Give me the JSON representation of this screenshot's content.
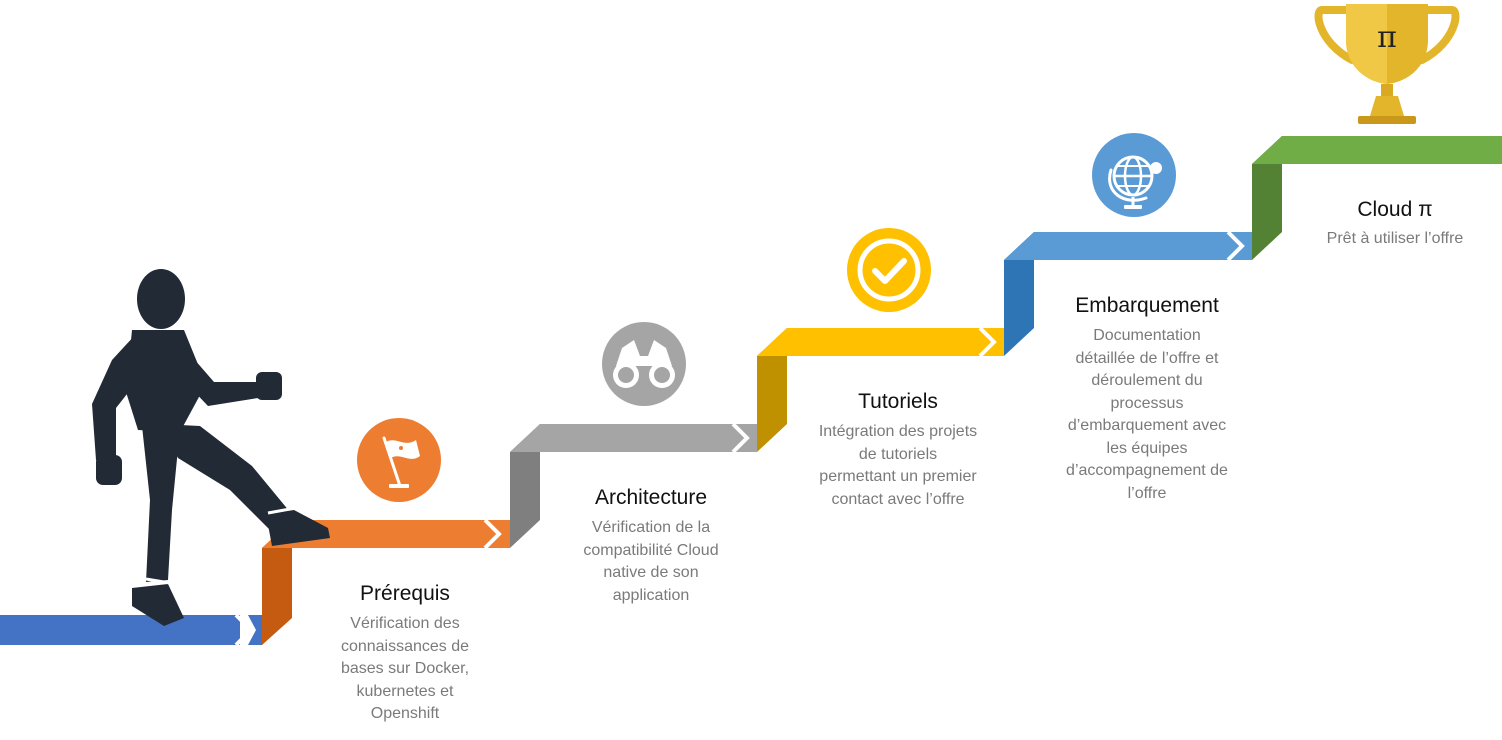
{
  "colors": {
    "start": "#4472c4",
    "prerequis": "#ed7d31",
    "prerequis_dark": "#c55a11",
    "architecture": "#a5a5a5",
    "architecture_dark": "#7f7f7f",
    "tutoriels": "#ffc000",
    "tutoriels_dark": "#bf9000",
    "embarquement": "#5b9bd5",
    "embarquement_dark": "#2e75b6",
    "cloud": "#70ad47",
    "cloud_dark": "#548235",
    "trophy": "#e3b52a",
    "person": "#222a35"
  },
  "steps": [
    {
      "title": "Prérequis",
      "icon": "flag-icon",
      "description": [
        "Vérification des",
        "connaissances de",
        "bases sur Docker,",
        "kubernetes et",
        "Openshift"
      ]
    },
    {
      "title": "Architecture",
      "icon": "binoculars-icon",
      "description": [
        "Vérification de la",
        "compatibilité Cloud",
        "native de son",
        "application"
      ]
    },
    {
      "title": "Tutoriels",
      "icon": "checkmark-icon",
      "description": [
        "Intégration des projets",
        "de tutoriels",
        "permettant un premier",
        "contact avec l’offre"
      ]
    },
    {
      "title": "Embarquement",
      "icon": "globe-icon",
      "description": [
        "Documentation",
        "détaillée  de l’offre et",
        "déroulement du",
        "processus",
        "d’embarquement avec",
        "les équipes",
        "d’accompagnement de",
        "l’offre"
      ]
    },
    {
      "title": "Cloud π",
      "icon": "trophy-icon",
      "description": [
        "Prêt à utiliser l’offre"
      ]
    }
  ],
  "trophy": {
    "symbol": "π"
  },
  "figure": {
    "icon": "walking-person-icon"
  }
}
